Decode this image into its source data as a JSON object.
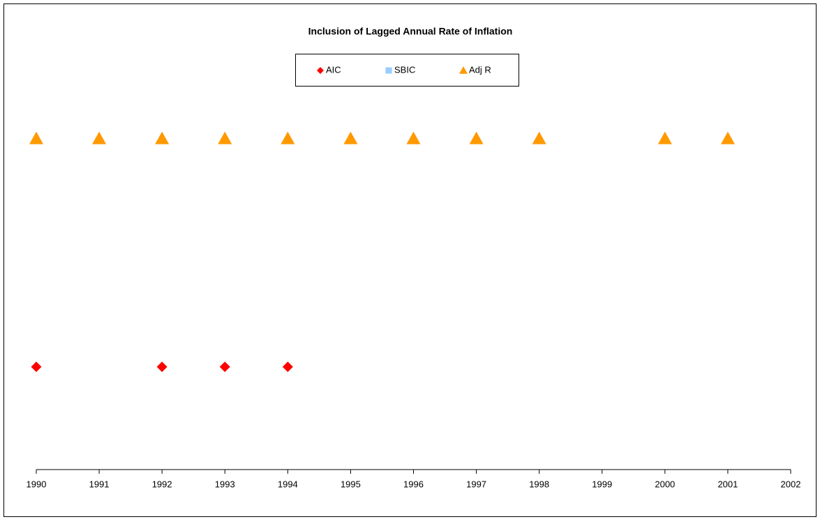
{
  "chart_data": {
    "type": "scatter",
    "title": "Inclusion of Lagged Annual Rate of Inflation",
    "x": [
      1990,
      1991,
      1992,
      1993,
      1994,
      1995,
      1996,
      1997,
      1998,
      1999,
      2000,
      2001
    ],
    "series": [
      {
        "name": "AIC",
        "color": "#ff0000",
        "marker": "diamond",
        "values": [
          1,
          null,
          1,
          1,
          1,
          null,
          null,
          null,
          null,
          null,
          null,
          null
        ]
      },
      {
        "name": "SBIC",
        "color": "#99ccff",
        "marker": "square",
        "values": [
          null,
          null,
          null,
          null,
          null,
          null,
          null,
          null,
          null,
          null,
          null,
          null
        ]
      },
      {
        "name": "Adj R",
        "color": "#ff9900",
        "marker": "triangle",
        "values": [
          3,
          3,
          3,
          3,
          3,
          3,
          3,
          3,
          3,
          null,
          3,
          3
        ]
      }
    ],
    "xlim": [
      1990,
      2002
    ],
    "xticks": [
      1990,
      1991,
      1992,
      1993,
      1994,
      1995,
      1996,
      1997,
      1998,
      1999,
      2000,
      2001,
      2002
    ],
    "ylim": [
      0.1,
      4
    ],
    "grid": false,
    "legend": "top"
  }
}
